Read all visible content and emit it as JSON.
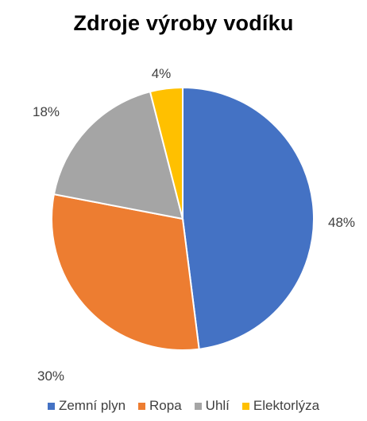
{
  "chart_data": {
    "type": "pie",
    "title": "Zdroje výroby vodíku",
    "categories": [
      "Zemní plyn",
      "Ropa",
      "Uhlí",
      "Elektorlýza"
    ],
    "values": [
      48,
      30,
      18,
      4
    ],
    "data_labels": [
      "48%",
      "30%",
      "18%",
      "4%"
    ],
    "colors": [
      "#4472C4",
      "#ED7D31",
      "#A5A5A5",
      "#FFC000"
    ],
    "legend_position": "bottom",
    "start_angle": "12 o'clock",
    "direction": "clockwise"
  }
}
